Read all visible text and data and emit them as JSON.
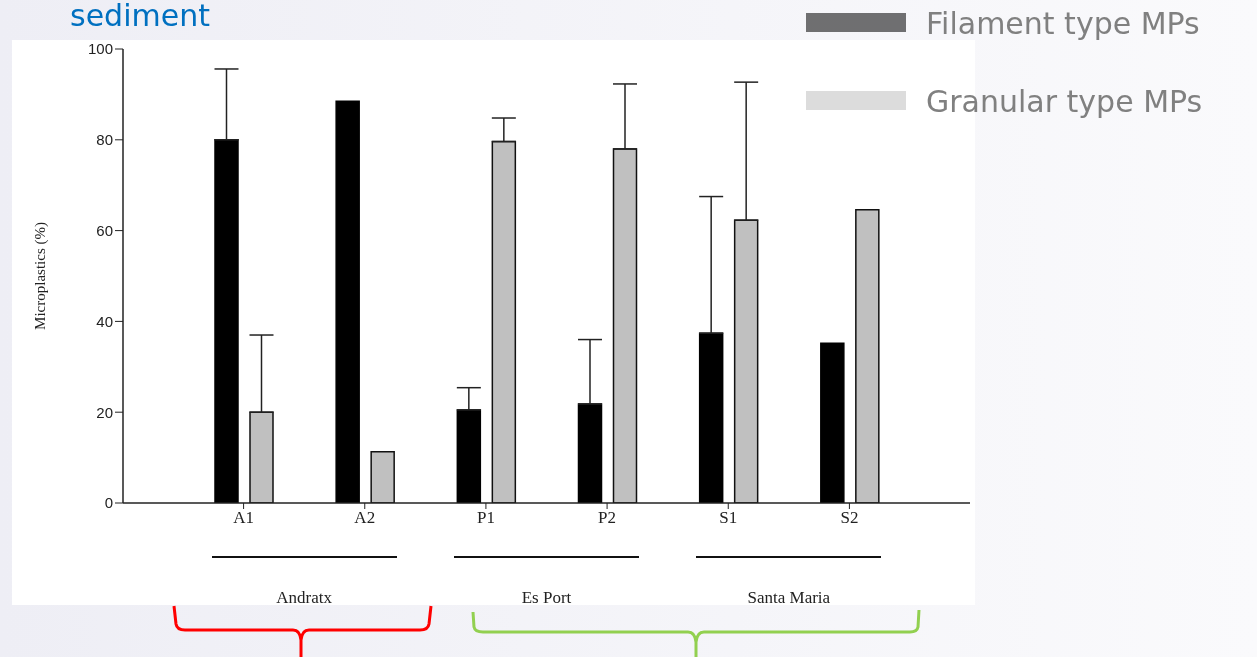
{
  "chart_data": {
    "type": "bar",
    "title": "sediment",
    "ylabel": "Microplastics (%)",
    "categories": [
      "A1",
      "A2",
      "P1",
      "P2",
      "S1",
      "S2"
    ],
    "series": [
      {
        "name": "Filament type MPs",
        "color": "#000000",
        "values": [
          80,
          88.5,
          20.5,
          21.8,
          37.4,
          35.2
        ],
        "errors": [
          [
            80,
            95.6
          ],
          null,
          [
            20.5,
            25.4
          ],
          [
            21.8,
            36
          ],
          [
            37.4,
            67.5
          ],
          null
        ]
      },
      {
        "name": "Granular type MPs",
        "color": "#c0c0c0",
        "values": [
          20,
          11.3,
          79.6,
          78,
          62.3,
          64.6
        ],
        "errors": [
          [
            20,
            37
          ],
          null,
          [
            79.6,
            84.8
          ],
          [
            78,
            92.3
          ],
          [
            62.3,
            92.7
          ],
          null
        ]
      }
    ],
    "ylim": [
      0,
      100
    ],
    "yticks": [
      0,
      20,
      40,
      60,
      80,
      100
    ],
    "grid": false,
    "legend": "top right",
    "annotations": [
      "Andratx",
      "Es Port",
      "Santa Maria"
    ]
  }
}
